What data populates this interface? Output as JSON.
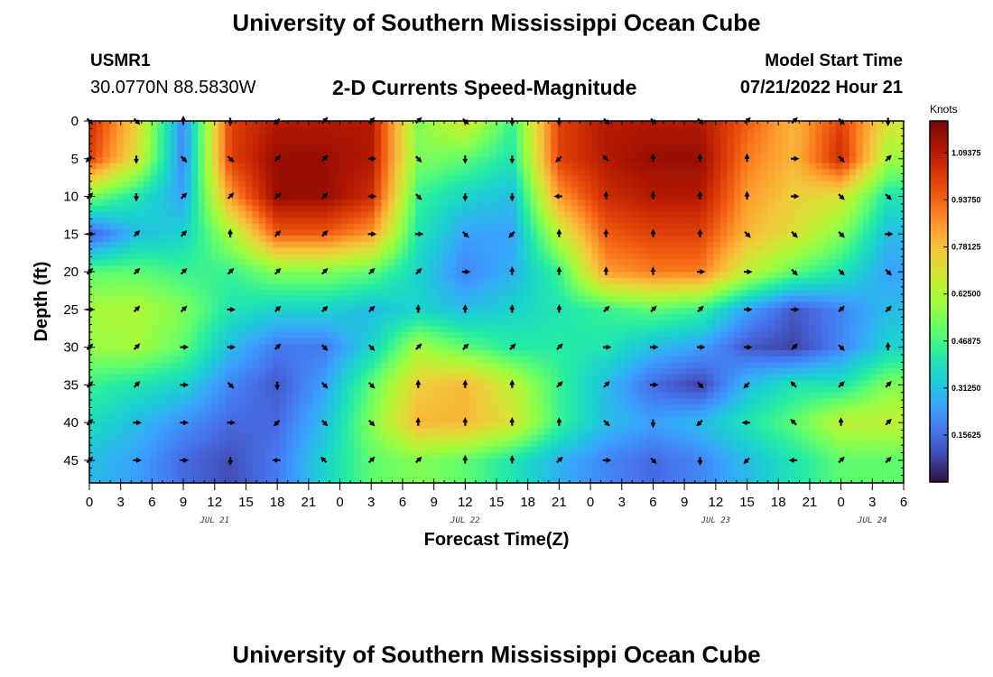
{
  "header": {
    "title": "University of Southern Mississippi Ocean Cube",
    "station_id": "USMR1",
    "location": "30.0770N  88.5830W",
    "subtitle": "2-D Currents Speed-Magnitude",
    "model_label": "Model Start Time",
    "model_time": "07/21/2022 Hour 21",
    "footer_title": "University of Southern Mississippi Ocean Cube"
  },
  "chart_data": {
    "type": "heatmap",
    "title": "2-D Currents Speed-Magnitude",
    "xlabel": "Forecast Time(Z)",
    "ylabel": "Depth (ft)",
    "x_range_hours": [
      0,
      78
    ],
    "y_range_ft": [
      0,
      48
    ],
    "x_tick_labels": [
      "0",
      "3",
      "6",
      "9",
      "12",
      "15",
      "18",
      "21",
      "0",
      "3",
      "6",
      "9",
      "12",
      "15",
      "18",
      "21",
      "0",
      "3",
      "6",
      "9",
      "12",
      "15",
      "18",
      "21",
      "0",
      "3",
      "6"
    ],
    "y_ticks": [
      0,
      5,
      10,
      15,
      20,
      25,
      30,
      35,
      40,
      45
    ],
    "date_labels": [
      {
        "hour": 12,
        "text": "JUL 21"
      },
      {
        "hour": 36,
        "text": "JUL 22"
      },
      {
        "hour": 60,
        "text": "JUL 23"
      },
      {
        "hour": 75,
        "text": "JUL 24"
      }
    ],
    "colorbar": {
      "unit": "Knots",
      "range": [
        0,
        1.2
      ],
      "tick_labels": [
        "0.15625",
        "0.31250",
        "0.46875",
        "0.62500",
        "0.78125",
        "0.93750",
        "1.09375"
      ]
    },
    "speed_field_knots": {
      "times_hours": [
        0,
        4.5,
        9,
        13.5,
        18,
        22.5,
        27,
        31.5,
        36,
        40.5,
        45,
        49.5,
        54,
        58.5,
        63,
        67.5,
        72,
        76.5
      ],
      "depths_ft": [
        0,
        5,
        10,
        15,
        20,
        25,
        30,
        35,
        40,
        45
      ],
      "values": [
        [
          1.05,
          0.75,
          0.2,
          1.0,
          1.1,
          1.1,
          1.1,
          0.55,
          0.7,
          0.45,
          1.0,
          1.1,
          1.1,
          1.1,
          0.95,
          0.8,
          1.0,
          0.7
        ],
        [
          1.0,
          0.7,
          0.2,
          1.0,
          1.15,
          1.15,
          1.1,
          0.55,
          0.5,
          0.4,
          1.0,
          1.1,
          1.15,
          1.15,
          0.9,
          0.8,
          1.05,
          0.6
        ],
        [
          0.55,
          0.4,
          0.25,
          0.85,
          1.15,
          1.15,
          1.05,
          0.45,
          0.35,
          0.3,
          0.85,
          1.05,
          1.1,
          1.1,
          0.85,
          0.75,
          0.7,
          0.4
        ],
        [
          0.12,
          0.3,
          0.35,
          0.6,
          0.95,
          0.95,
          0.85,
          0.4,
          0.25,
          0.25,
          0.65,
          0.95,
          1.0,
          1.0,
          0.8,
          0.7,
          0.55,
          0.3
        ],
        [
          0.5,
          0.5,
          0.45,
          0.45,
          0.55,
          0.55,
          0.5,
          0.35,
          0.2,
          0.28,
          0.45,
          0.85,
          0.9,
          0.9,
          0.65,
          0.5,
          0.4,
          0.25
        ],
        [
          0.6,
          0.62,
          0.55,
          0.4,
          0.35,
          0.35,
          0.3,
          0.35,
          0.3,
          0.35,
          0.4,
          0.45,
          0.5,
          0.45,
          0.25,
          0.12,
          0.2,
          0.3
        ],
        [
          0.58,
          0.6,
          0.5,
          0.3,
          0.18,
          0.18,
          0.35,
          0.6,
          0.5,
          0.42,
          0.42,
          0.4,
          0.3,
          0.25,
          0.12,
          0.08,
          0.2,
          0.35
        ],
        [
          0.45,
          0.4,
          0.35,
          0.2,
          0.12,
          0.25,
          0.5,
          0.75,
          0.8,
          0.65,
          0.45,
          0.3,
          0.15,
          0.08,
          0.3,
          0.4,
          0.4,
          0.55
        ],
        [
          0.38,
          0.3,
          0.22,
          0.15,
          0.15,
          0.3,
          0.55,
          0.8,
          0.8,
          0.7,
          0.45,
          0.3,
          0.25,
          0.3,
          0.4,
          0.5,
          0.65,
          0.65
        ],
        [
          0.3,
          0.25,
          0.15,
          0.1,
          0.18,
          0.35,
          0.5,
          0.55,
          0.5,
          0.4,
          0.28,
          0.2,
          0.15,
          0.2,
          0.3,
          0.4,
          0.5,
          0.5
        ]
      ]
    },
    "arrow_directions_deg": [
      [
        135,
        135,
        0,
        180,
        225,
        45,
        45,
        45,
        135,
        180,
        180,
        135,
        135,
        135,
        45,
        45,
        135,
        180
      ],
      [
        225,
        180,
        135,
        135,
        45,
        45,
        90,
        135,
        180,
        180,
        225,
        315,
        0,
        0,
        0,
        90,
        135,
        45
      ],
      [
        45,
        180,
        45,
        45,
        45,
        45,
        90,
        135,
        180,
        180,
        270,
        0,
        0,
        0,
        0,
        90,
        135,
        135
      ],
      [
        90,
        45,
        45,
        0,
        45,
        45,
        90,
        90,
        135,
        225,
        0,
        0,
        0,
        0,
        135,
        135,
        135,
        90
      ],
      [
        45,
        45,
        45,
        45,
        45,
        45,
        45,
        45,
        90,
        0,
        0,
        0,
        0,
        90,
        90,
        135,
        135,
        135
      ],
      [
        90,
        45,
        45,
        90,
        45,
        45,
        45,
        0,
        0,
        0,
        0,
        45,
        45,
        45,
        90,
        90,
        45,
        45
      ],
      [
        45,
        45,
        90,
        90,
        45,
        135,
        135,
        45,
        45,
        45,
        45,
        90,
        90,
        90,
        90,
        45,
        135,
        0
      ],
      [
        45,
        45,
        90,
        135,
        180,
        135,
        135,
        0,
        0,
        0,
        45,
        45,
        90,
        135,
        225,
        315,
        45,
        45
      ],
      [
        45,
        90,
        90,
        90,
        225,
        135,
        135,
        0,
        0,
        0,
        0,
        135,
        180,
        225,
        270,
        315,
        0,
        45
      ],
      [
        45,
        90,
        90,
        180,
        270,
        315,
        45,
        45,
        0,
        0,
        45,
        90,
        135,
        180,
        225,
        270,
        45,
        45
      ]
    ]
  }
}
